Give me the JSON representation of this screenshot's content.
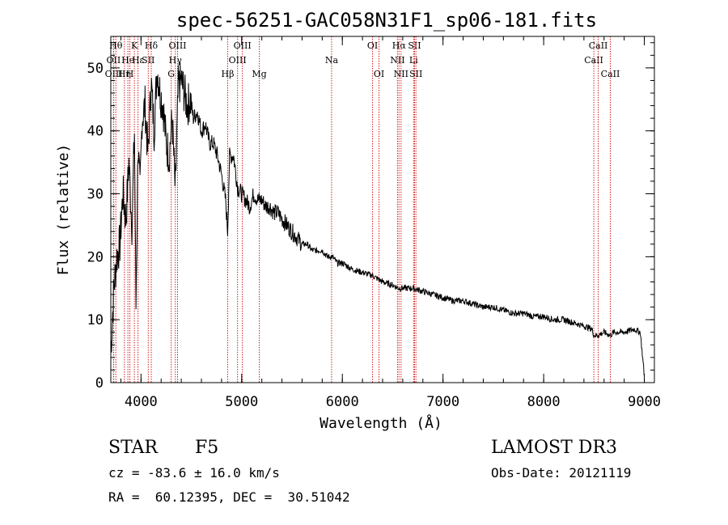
{
  "header": {
    "title": "spec-56251-GAC058N31F1_sp06-181.fits"
  },
  "chart_data": {
    "type": "line",
    "title": "spec-56251-GAC058N31F1_sp06-181.fits",
    "xlabel": "Wavelength (Å)",
    "ylabel": "Flux (relative)",
    "xlim": [
      3700,
      9100
    ],
    "ylim": [
      0,
      55
    ],
    "xticks": [
      4000,
      5000,
      6000,
      7000,
      8000,
      9000
    ],
    "yticks": [
      0,
      10,
      20,
      30,
      40,
      50
    ],
    "grid": false,
    "series": [
      {
        "name": "flux",
        "x": [
          3700,
          3730,
          3760,
          3790,
          3820,
          3850,
          3880,
          3910,
          3935,
          3950,
          3970,
          3990,
          4010,
          4040,
          4070,
          4100,
          4130,
          4160,
          4190,
          4220,
          4250,
          4280,
          4310,
          4340,
          4370,
          4400,
          4430,
          4460,
          4490,
          4520,
          4560,
          4600,
          4640,
          4680,
          4720,
          4760,
          4800,
          4840,
          4860,
          4880,
          4920,
          4960,
          5000,
          5040,
          5080,
          5120,
          5160,
          5200,
          5240,
          5280,
          5320,
          5360,
          5400,
          5450,
          5500,
          5550,
          5600,
          5650,
          5700,
          5750,
          5800,
          5850,
          5900,
          5950,
          6000,
          6100,
          6200,
          6300,
          6400,
          6500,
          6560,
          6600,
          6700,
          6800,
          6900,
          7000,
          7100,
          7200,
          7300,
          7400,
          7500,
          7600,
          7700,
          7800,
          7900,
          8000,
          8100,
          8200,
          8300,
          8400,
          8480,
          8500,
          8540,
          8600,
          8660,
          8700,
          8800,
          8900,
          8960,
          9000
        ],
        "y": [
          5,
          15,
          20,
          22,
          30,
          26,
          35,
          25,
          40,
          12,
          38,
          30,
          42,
          44,
          36,
          48,
          40,
          50,
          46,
          44,
          38,
          36,
          42,
          30,
          47,
          48,
          46,
          44,
          45,
          42,
          43,
          40,
          41,
          38,
          38,
          36,
          33,
          29,
          24,
          36,
          36,
          31,
          30,
          29,
          28,
          30,
          29,
          29,
          28,
          28,
          27,
          27,
          26,
          25,
          24,
          23,
          22,
          22,
          21,
          21,
          21,
          20,
          20,
          19,
          19,
          18,
          17.5,
          17,
          16,
          15.5,
          15,
          15,
          15,
          14.5,
          14,
          13.5,
          13,
          13,
          12.5,
          12,
          12,
          11.5,
          11,
          11,
          10.5,
          10.5,
          10,
          10,
          9.5,
          9,
          8.5,
          7.5,
          7.5,
          8,
          7.5,
          8,
          8,
          8.5,
          8,
          1
        ]
      }
    ],
    "lines": [
      {
        "wl": 3750,
        "label": "Hθ",
        "row": 1
      },
      {
        "wl": 3727,
        "label": "OII",
        "row": 2
      },
      {
        "wl": 3729,
        "label": "OIII",
        "row": 3
      },
      {
        "wl": 3835,
        "label": "Hη",
        "row": 3
      },
      {
        "wl": 3870,
        "label": "He",
        "row": 2
      },
      {
        "wl": 3889,
        "label": "H",
        "row": 3
      },
      {
        "wl": 3934,
        "label": "K",
        "row": 1
      },
      {
        "wl": 3970,
        "label": "Hε",
        "row": 2
      },
      {
        "wl": 4072,
        "label": "SII",
        "row": 2
      },
      {
        "wl": 4102,
        "label": "Hδ",
        "row": 1
      },
      {
        "wl": 4300,
        "label": "G",
        "row": 3
      },
      {
        "wl": 4341,
        "label": "Hγ",
        "row": 2
      },
      {
        "wl": 4363,
        "label": "OIII",
        "row": 1
      },
      {
        "wl": 4861,
        "label": "Hβ",
        "row": 3
      },
      {
        "wl": 4959,
        "label": "OIII",
        "row": 2
      },
      {
        "wl": 5007,
        "label": "OIII",
        "row": 1
      },
      {
        "wl": 5175,
        "label": "Mg",
        "row": 3
      },
      {
        "wl": 5893,
        "label": "Na",
        "row": 2
      },
      {
        "wl": 6300,
        "label": "OI",
        "row": 1
      },
      {
        "wl": 6364,
        "label": "OI",
        "row": 3
      },
      {
        "wl": 6548,
        "label": "NII",
        "row": 2
      },
      {
        "wl": 6563,
        "label": "Hα",
        "row": 1
      },
      {
        "wl": 6583,
        "label": "NII",
        "row": 3
      },
      {
        "wl": 6708,
        "label": "Li",
        "row": 2
      },
      {
        "wl": 6717,
        "label": "SII",
        "row": 1
      },
      {
        "wl": 6731,
        "label": "SII",
        "row": 3
      },
      {
        "wl": 8498,
        "label": "CaII",
        "row": 2
      },
      {
        "wl": 8542,
        "label": "CaII",
        "row": 1
      },
      {
        "wl": 8662,
        "label": "CaII",
        "row": 3
      }
    ]
  },
  "info": {
    "class_label": "STAR",
    "subclass": "F5",
    "survey": "LAMOST DR3",
    "cz": "cz = -83.6 ± 16.0 km/s",
    "obs_date": "Obs-Date: 20121119",
    "coords": "RA =  60.12395, DEC =  30.51042"
  }
}
